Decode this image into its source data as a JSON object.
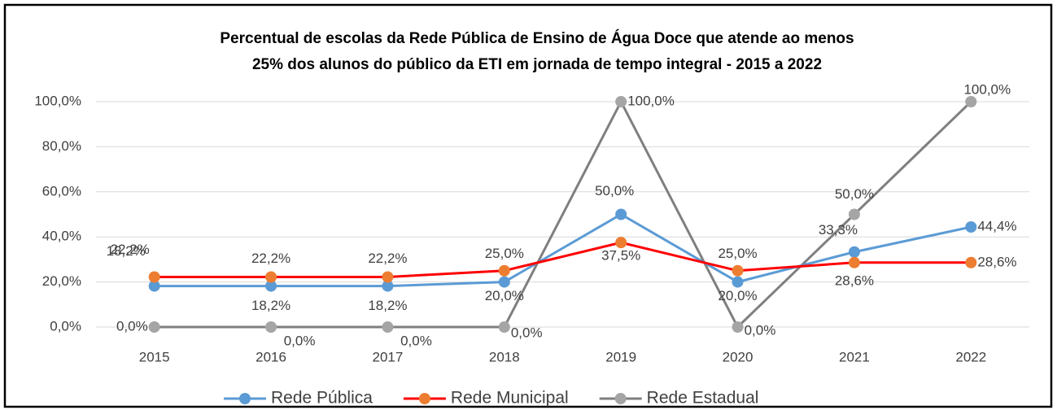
{
  "chart_data": {
    "type": "line",
    "title": [
      "Percentual de escolas da Rede Pública de Ensino de Água Doce que atende ao menos",
      "25% dos alunos do público da ETI em jornada de tempo integral  - 2015 a 2022"
    ],
    "categories": [
      "2015",
      "2016",
      "2017",
      "2018",
      "2019",
      "2020",
      "2021",
      "2022"
    ],
    "series": [
      {
        "name": "Rede Pública",
        "color": "#5b9bd5",
        "marker_color": "#5b9bd5",
        "values": [
          18.2,
          18.2,
          18.2,
          20.0,
          50.0,
          20.0,
          33.3,
          44.4
        ],
        "value_labels": [
          "18,2%",
          "18,2%",
          "18,2%",
          "20,0%",
          "50,0%",
          "20,0%",
          "33,3%",
          "44,4%"
        ]
      },
      {
        "name": "Rede Municipal",
        "color": "#ff0000",
        "marker_color": "#ed7d31",
        "label_color": "#ff0000",
        "values": [
          22.2,
          22.2,
          22.2,
          25.0,
          37.5,
          25.0,
          28.6,
          28.6
        ],
        "value_labels": [
          "22,2%",
          "22,2%",
          "22,2%",
          "25,0%",
          "37,5%",
          "25,0%",
          "28,6%",
          "28,6%"
        ]
      },
      {
        "name": "Rede Estadual",
        "color": "#7f7f7f",
        "marker_color": "#a5a5a5",
        "label_color": "#595959",
        "values": [
          0,
          0,
          0,
          0,
          100,
          0,
          50,
          100
        ],
        "value_labels": [
          "0,0%",
          "0,0%",
          "0,0%",
          "0,0%",
          "100,0%",
          "0,0%",
          "50,0%",
          "100,0%"
        ]
      }
    ],
    "ylim": [
      0,
      100
    ],
    "yticks": [
      {
        "value": 0,
        "label": "0,0%"
      },
      {
        "value": 20,
        "label": "20,0%"
      },
      {
        "value": 40,
        "label": "40,0%"
      },
      {
        "value": 60,
        "label": "60,0%"
      },
      {
        "value": 80,
        "label": "80,0%"
      },
      {
        "value": 100,
        "label": "100,0%"
      }
    ],
    "grid": true,
    "legend": "bottom"
  }
}
